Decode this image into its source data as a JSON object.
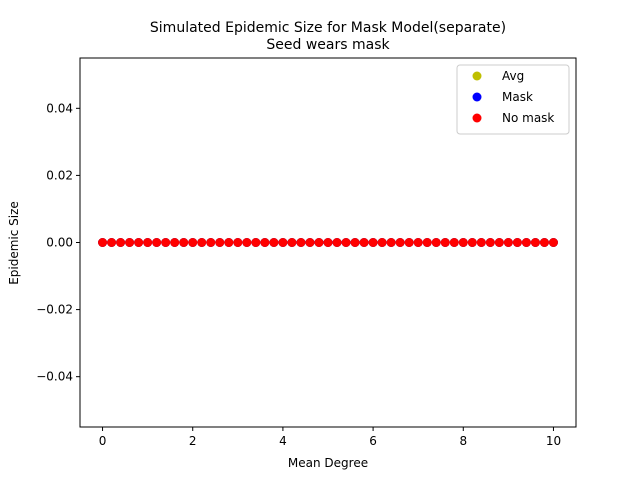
{
  "chart_data": {
    "type": "scatter",
    "title": "Simulated Epidemic Size for Mask Model(separate)",
    "subtitle": "Seed wears mask",
    "xlabel": "Mean Degree",
    "ylabel": "Epidemic Size",
    "xlim": [
      -0.5,
      10.5
    ],
    "ylim": [
      -0.055,
      0.055
    ],
    "xticks": [
      0,
      2,
      4,
      6,
      8,
      10
    ],
    "xtick_labels": [
      "0",
      "2",
      "4",
      "6",
      "8",
      "10"
    ],
    "yticks": [
      -0.04,
      -0.02,
      0.0,
      0.02,
      0.04
    ],
    "ytick_labels": [
      "−0.04",
      "−0.02",
      "0.00",
      "0.02",
      "0.04"
    ],
    "grid": false,
    "legend_position": "top-right",
    "x": [
      0.0,
      0.2,
      0.4,
      0.6,
      0.8,
      1.0,
      1.2,
      1.4,
      1.6,
      1.8,
      2.0,
      2.2,
      2.4,
      2.6,
      2.8,
      3.0,
      3.2,
      3.4,
      3.6,
      3.8,
      4.0,
      4.2,
      4.4,
      4.6,
      4.8,
      5.0,
      5.2,
      5.4,
      5.6,
      5.8,
      6.0,
      6.2,
      6.4,
      6.6,
      6.8,
      7.0,
      7.2,
      7.4,
      7.6,
      7.8,
      8.0,
      8.2,
      8.4,
      8.6,
      8.8,
      9.0,
      9.2,
      9.4,
      9.6,
      9.8,
      10.0
    ],
    "series": [
      {
        "name": "Avg",
        "color": "#bfbf00",
        "values": [
          0,
          0,
          0,
          0,
          0,
          0,
          0,
          0,
          0,
          0,
          0,
          0,
          0,
          0,
          0,
          0,
          0,
          0,
          0,
          0,
          0,
          0,
          0,
          0,
          0,
          0,
          0,
          0,
          0,
          0,
          0,
          0,
          0,
          0,
          0,
          0,
          0,
          0,
          0,
          0,
          0,
          0,
          0,
          0,
          0,
          0,
          0,
          0,
          0,
          0,
          0
        ]
      },
      {
        "name": "Mask",
        "color": "#0000ff",
        "values": [
          0,
          0,
          0,
          0,
          0,
          0,
          0,
          0,
          0,
          0,
          0,
          0,
          0,
          0,
          0,
          0,
          0,
          0,
          0,
          0,
          0,
          0,
          0,
          0,
          0,
          0,
          0,
          0,
          0,
          0,
          0,
          0,
          0,
          0,
          0,
          0,
          0,
          0,
          0,
          0,
          0,
          0,
          0,
          0,
          0,
          0,
          0,
          0,
          0,
          0,
          0
        ]
      },
      {
        "name": "No mask",
        "color": "#ff0000",
        "values": [
          0,
          0,
          0,
          0,
          0,
          0,
          0,
          0,
          0,
          0,
          0,
          0,
          0,
          0,
          0,
          0,
          0,
          0,
          0,
          0,
          0,
          0,
          0,
          0,
          0,
          0,
          0,
          0,
          0,
          0,
          0,
          0,
          0,
          0,
          0,
          0,
          0,
          0,
          0,
          0,
          0,
          0,
          0,
          0,
          0,
          0,
          0,
          0,
          0,
          0,
          0
        ]
      }
    ]
  }
}
